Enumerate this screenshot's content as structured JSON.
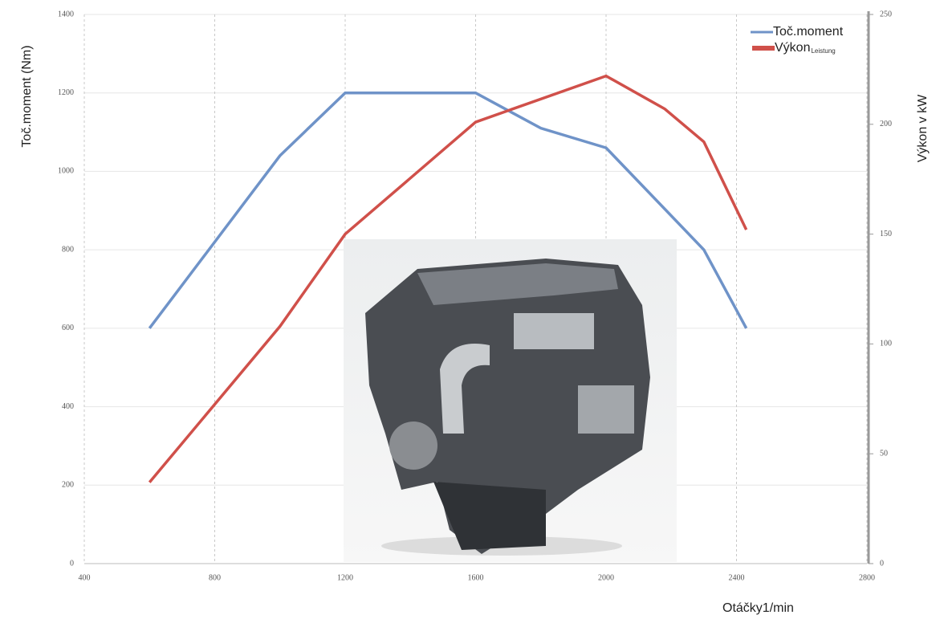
{
  "chart_data": {
    "type": "line",
    "y_label": "Toč.moment (Nm)",
    "y2_label": "Výkon v kW",
    "x_label": "Otáčky1/min",
    "xlim": [
      400,
      2800
    ],
    "xticks": [
      400,
      800,
      1200,
      1600,
      2000,
      2400,
      2800
    ],
    "ylim": [
      0,
      1400
    ],
    "yticks": [
      0,
      200,
      400,
      600,
      800,
      1000,
      1200,
      1400
    ],
    "y2lim": [
      0,
      250
    ],
    "y2ticks": [
      0,
      50,
      100,
      150,
      200,
      250
    ],
    "grid": true,
    "series": [
      {
        "name": "Toč.moment",
        "color": "#6f93c8",
        "axis": "y",
        "x": [
          600,
          1000,
          1200,
          1600,
          1800,
          2000,
          2300,
          2430
        ],
        "values": [
          600,
          1040,
          1200,
          1200,
          1110,
          1060,
          800,
          600
        ]
      },
      {
        "name": "Výkon",
        "name_subscript": "Leistung",
        "color": "#d0504a",
        "axis": "y2",
        "x": [
          600,
          1000,
          1200,
          1600,
          2000,
          2180,
          2300,
          2430
        ],
        "values": [
          37,
          108,
          150,
          201,
          222,
          207,
          192,
          152
        ]
      }
    ]
  }
}
